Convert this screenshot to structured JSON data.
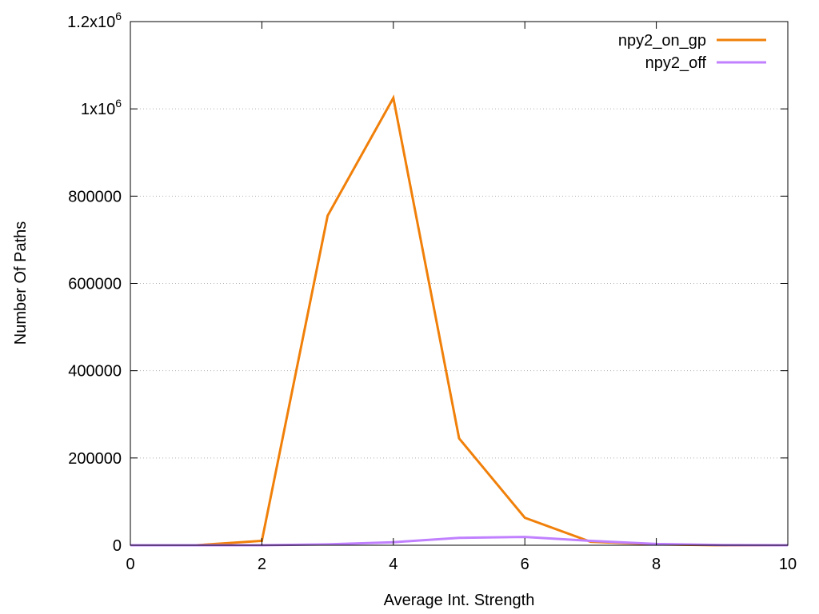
{
  "chart_data": {
    "type": "line",
    "xlabel": "Average Int. Strength",
    "ylabel": "Number Of Paths",
    "xlim": [
      0,
      10
    ],
    "ylim": [
      0,
      1200000
    ],
    "grid": "horizontal dotted",
    "legend": "top-right",
    "x_ticks": [
      {
        "value": 0,
        "label": "0"
      },
      {
        "value": 2,
        "label": "2"
      },
      {
        "value": 4,
        "label": "4"
      },
      {
        "value": 6,
        "label": "6"
      },
      {
        "value": 8,
        "label": "8"
      },
      {
        "value": 10,
        "label": "10"
      }
    ],
    "y_ticks": [
      {
        "value": 0,
        "label": "0"
      },
      {
        "value": 200000,
        "label": "200000"
      },
      {
        "value": 400000,
        "label": "400000"
      },
      {
        "value": 600000,
        "label": "600000"
      },
      {
        "value": 800000,
        "label": "800000"
      },
      {
        "value": 1000000,
        "base": "1x10",
        "exp": "6"
      },
      {
        "value": 1200000,
        "base": "1.2x10",
        "exp": "6"
      }
    ],
    "series": [
      {
        "name": "npy2_on_gp",
        "color": "#f0800a",
        "points": [
          [
            0,
            0
          ],
          [
            1,
            0
          ],
          [
            2,
            10000
          ],
          [
            3,
            755000
          ],
          [
            4,
            1025000
          ],
          [
            5,
            245000
          ],
          [
            6,
            63000
          ],
          [
            7,
            8000
          ],
          [
            8,
            2000
          ],
          [
            9,
            0
          ],
          [
            10,
            0
          ]
        ]
      },
      {
        "name": "npy2_off",
        "color": "#c080ff",
        "points": [
          [
            0,
            0
          ],
          [
            1,
            0
          ],
          [
            2,
            0
          ],
          [
            3,
            2000
          ],
          [
            4,
            7000
          ],
          [
            5,
            17000
          ],
          [
            6,
            19000
          ],
          [
            7,
            10000
          ],
          [
            8,
            3000
          ],
          [
            9,
            500
          ],
          [
            10,
            0
          ]
        ]
      }
    ]
  }
}
